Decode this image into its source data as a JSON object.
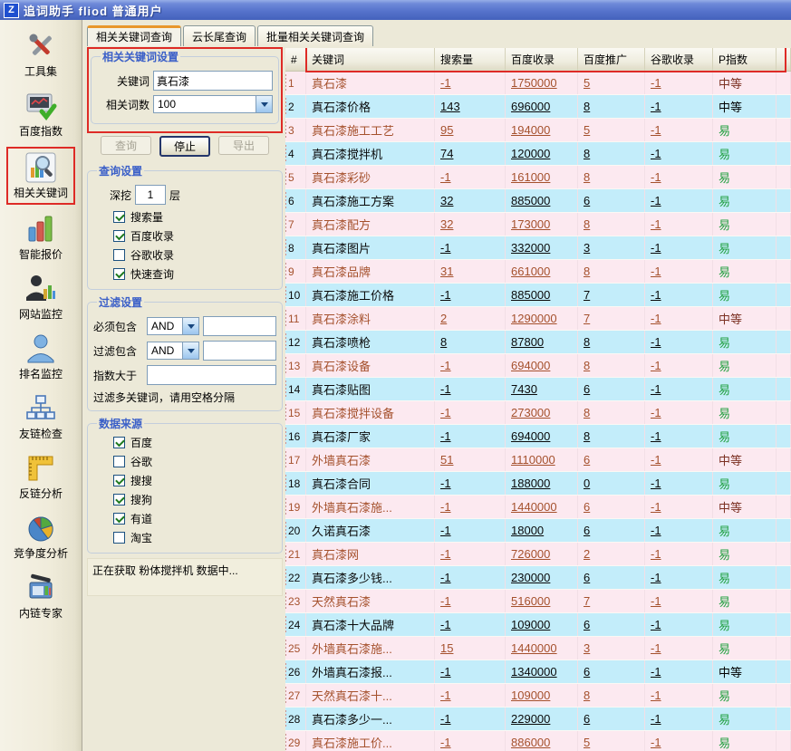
{
  "window": {
    "title": "追词助手 fliod 普通用户",
    "logo_letter": "Z"
  },
  "sidebar": {
    "items": [
      {
        "label": "工具集",
        "icon": "tools-icon",
        "active": false
      },
      {
        "label": "百度指数",
        "icon": "baidu-index-icon",
        "active": false
      },
      {
        "label": "相关关键词",
        "icon": "related-keywords-icon",
        "active": true
      },
      {
        "label": "智能报价",
        "icon": "smart-quote-icon",
        "active": false
      },
      {
        "label": "网站监控",
        "icon": "site-monitor-icon",
        "active": false
      },
      {
        "label": "排名监控",
        "icon": "rank-monitor-icon",
        "active": false
      },
      {
        "label": "友链检查",
        "icon": "friend-link-icon",
        "active": false
      },
      {
        "label": "反链分析",
        "icon": "backlink-icon",
        "active": false
      },
      {
        "label": "竞争度分析",
        "icon": "competition-icon",
        "active": false
      },
      {
        "label": "内链专家",
        "icon": "internal-link-icon",
        "active": false
      }
    ]
  },
  "tabs": [
    {
      "label": "相关关键词查询",
      "active": true
    },
    {
      "label": "云长尾查询",
      "active": false
    },
    {
      "label": "批量相关关键词查询",
      "active": false
    }
  ],
  "keyword_group": {
    "title": "相关关键词设置",
    "keyword_label": "关键词",
    "keyword_value": "真石漆",
    "count_label": "相关词数",
    "count_value": "100"
  },
  "action_buttons": {
    "query": "查询",
    "stop": "停止",
    "export": "导出"
  },
  "query_group": {
    "title": "查询设置",
    "depth_label": "深挖",
    "depth_value": "1",
    "depth_unit": "层",
    "options": [
      {
        "label": "搜索量",
        "checked": true
      },
      {
        "label": "百度收录",
        "checked": true
      },
      {
        "label": "谷歌收录",
        "checked": false
      },
      {
        "label": "快速查询",
        "checked": true
      }
    ]
  },
  "filter_group": {
    "title": "过滤设置",
    "rows": [
      {
        "label": "必须包含",
        "operator": "AND",
        "value": ""
      },
      {
        "label": "过滤包含",
        "operator": "AND",
        "value": ""
      }
    ],
    "index_label": "指数大于",
    "index_value": "",
    "hint": "过滤多关键词，请用空格分隔"
  },
  "source_group": {
    "title": "数据来源",
    "options": [
      {
        "label": "百度",
        "checked": true
      },
      {
        "label": "谷歌",
        "checked": false
      },
      {
        "label": "搜搜",
        "checked": true
      },
      {
        "label": "搜狗",
        "checked": true
      },
      {
        "label": "有道",
        "checked": true
      },
      {
        "label": "淘宝",
        "checked": false
      }
    ]
  },
  "status_message": "正在获取 粉体搅拌机 数据中...",
  "table": {
    "columns": [
      "#",
      "关键词",
      "搜索量",
      "百度收录",
      "百度推广",
      "谷歌收录",
      "P指数"
    ],
    "rows": [
      [
        "1",
        "真石漆",
        "-1",
        "1750000",
        "5",
        "-1",
        "中等"
      ],
      [
        "2",
        "真石漆价格",
        "143",
        "696000",
        "8",
        "-1",
        "中等"
      ],
      [
        "3",
        "真石漆施工工艺",
        "95",
        "194000",
        "5",
        "-1",
        "易"
      ],
      [
        "4",
        "真石漆搅拌机",
        "74",
        "120000",
        "8",
        "-1",
        "易"
      ],
      [
        "5",
        "真石漆彩砂",
        "-1",
        "161000",
        "8",
        "-1",
        "易"
      ],
      [
        "6",
        "真石漆施工方案",
        "32",
        "885000",
        "6",
        "-1",
        "易"
      ],
      [
        "7",
        "真石漆配方",
        "32",
        "173000",
        "8",
        "-1",
        "易"
      ],
      [
        "8",
        "真石漆图片",
        "-1",
        "332000",
        "3",
        "-1",
        "易"
      ],
      [
        "9",
        "真石漆品牌",
        "31",
        "661000",
        "8",
        "-1",
        "易"
      ],
      [
        "10",
        "真石漆施工价格",
        "-1",
        "885000",
        "7",
        "-1",
        "易"
      ],
      [
        "11",
        "真石漆涂料",
        "2",
        "1290000",
        "7",
        "-1",
        "中等"
      ],
      [
        "12",
        "真石漆喷枪",
        "8",
        "87800",
        "8",
        "-1",
        "易"
      ],
      [
        "13",
        "真石漆设备",
        "-1",
        "694000",
        "8",
        "-1",
        "易"
      ],
      [
        "14",
        "真石漆贴图",
        "-1",
        "7430",
        "6",
        "-1",
        "易"
      ],
      [
        "15",
        "真石漆搅拌设备",
        "-1",
        "273000",
        "8",
        "-1",
        "易"
      ],
      [
        "16",
        "真石漆厂家",
        "-1",
        "694000",
        "8",
        "-1",
        "易"
      ],
      [
        "17",
        "外墙真石漆",
        "51",
        "1110000",
        "6",
        "-1",
        "中等"
      ],
      [
        "18",
        "真石漆合同",
        "-1",
        "188000",
        "0",
        "-1",
        "易"
      ],
      [
        "19",
        "外墙真石漆施...",
        "-1",
        "1440000",
        "6",
        "-1",
        "中等"
      ],
      [
        "20",
        "久诺真石漆",
        "-1",
        "18000",
        "6",
        "-1",
        "易"
      ],
      [
        "21",
        "真石漆网",
        "-1",
        "726000",
        "2",
        "-1",
        "易"
      ],
      [
        "22",
        "真石漆多少钱...",
        "-1",
        "230000",
        "6",
        "-1",
        "易"
      ],
      [
        "23",
        "天然真石漆",
        "-1",
        "516000",
        "7",
        "-1",
        "易"
      ],
      [
        "24",
        "真石漆十大品牌",
        "-1",
        "109000",
        "6",
        "-1",
        "易"
      ],
      [
        "25",
        "外墙真石漆施...",
        "15",
        "1440000",
        "3",
        "-1",
        "易"
      ],
      [
        "26",
        "外墙真石漆报...",
        "-1",
        "1340000",
        "6",
        "-1",
        "中等"
      ],
      [
        "27",
        "天然真石漆十...",
        "-1",
        "109000",
        "8",
        "-1",
        "易"
      ],
      [
        "28",
        "真石漆多少一...",
        "-1",
        "229000",
        "6",
        "-1",
        "易"
      ],
      [
        "29",
        "真石漆施工价...",
        "-1",
        "886000",
        "5",
        "-1",
        "易"
      ]
    ]
  },
  "colors": {
    "annotation_red": "#DE2B26",
    "row_odd_bg": "#FCE9F0",
    "row_even_bg": "#C3EDFA",
    "odd_text_brown": "#A5512D",
    "easy_green": "#1D9E3C",
    "mid_dark_red": "#7B3022",
    "titlebar_blue": "#5673CC",
    "group_title_blue": "#3A5FC8"
  }
}
